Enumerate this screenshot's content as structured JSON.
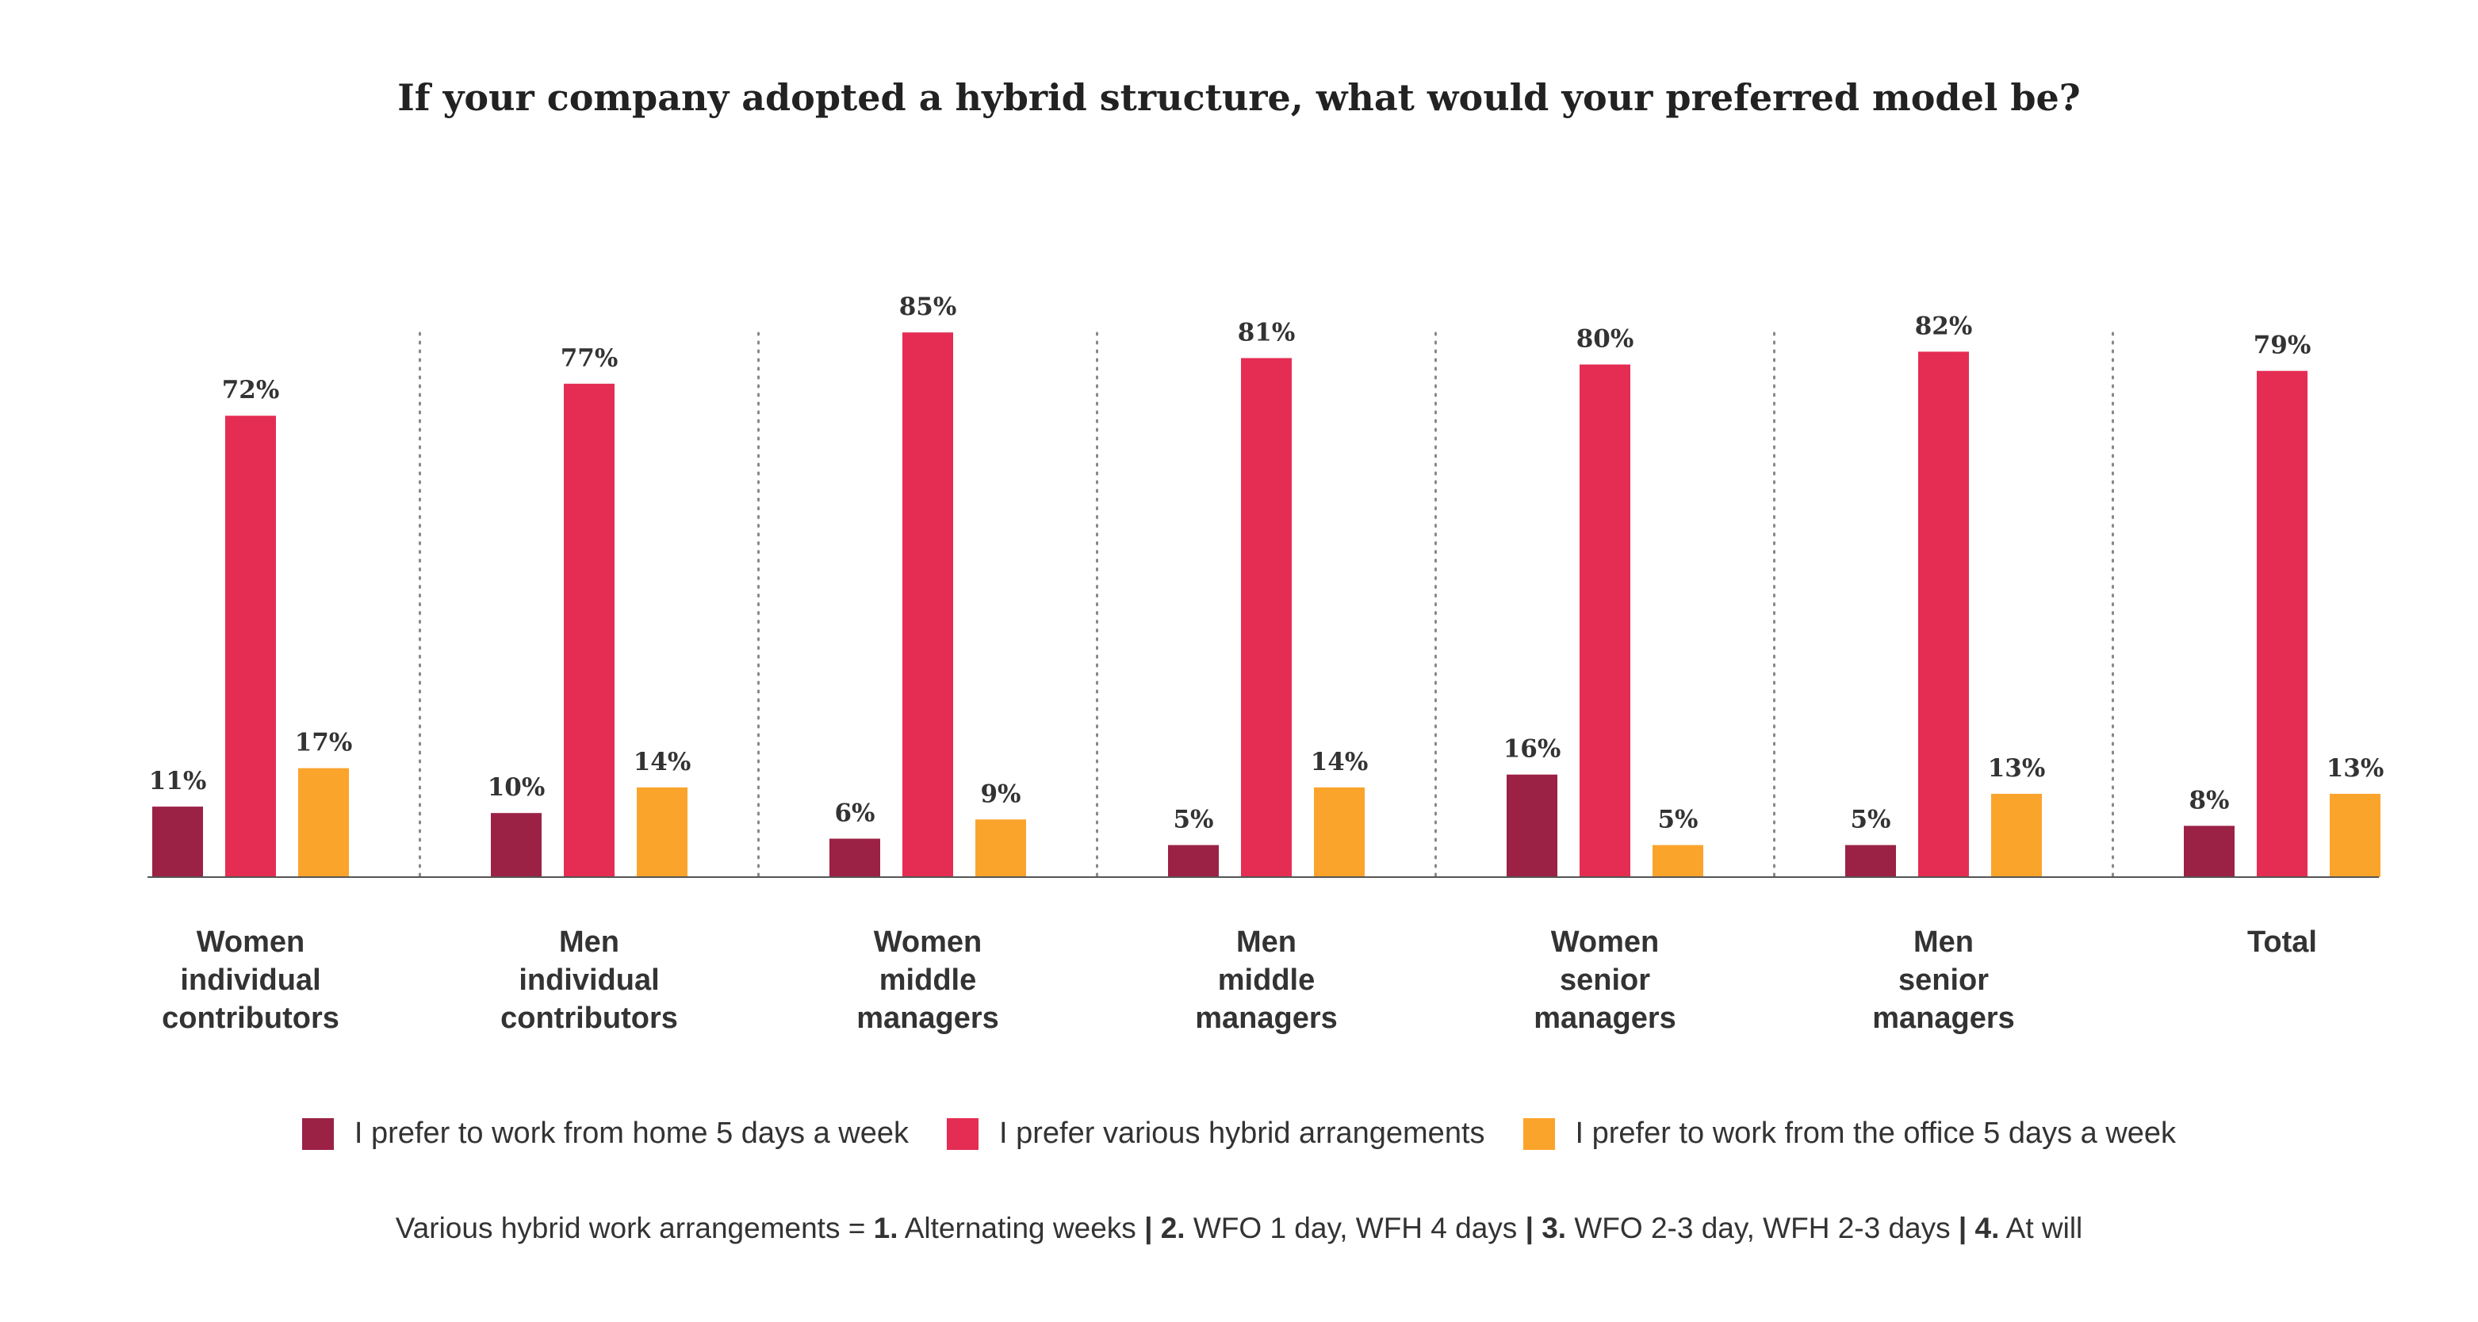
{
  "chart_data": {
    "type": "bar",
    "title": "If your company adopted a hybrid structure, what would your preferred model be?",
    "categories": [
      [
        "Women",
        "individual",
        "contributors"
      ],
      [
        "Men",
        "individual",
        "contributors"
      ],
      [
        "Women",
        "middle",
        "managers"
      ],
      [
        "Men",
        "middle",
        "managers"
      ],
      [
        "Women",
        "senior",
        "managers"
      ],
      [
        "Men",
        "senior",
        "managers"
      ],
      [
        "Total"
      ]
    ],
    "series": [
      {
        "name": "I prefer to work from home 5 days a week",
        "color": "#9B2145",
        "values": [
          11,
          10,
          6,
          5,
          16,
          5,
          8
        ]
      },
      {
        "name": "I prefer various hybrid arrangements",
        "color": "#E52D53",
        "values": [
          72,
          77,
          85,
          81,
          80,
          82,
          79
        ]
      },
      {
        "name": "I prefer to work from the office 5 days a week",
        "color": "#FBA42C",
        "values": [
          17,
          14,
          9,
          14,
          5,
          13,
          13
        ]
      }
    ],
    "value_suffix": "%",
    "ylim": [
      0,
      100
    ],
    "grid": false,
    "group_separators": "dotted",
    "legend_position": "bottom"
  },
  "footnote": {
    "prefix": "Various hybrid work arrangements = ",
    "items": [
      {
        "num": "1.",
        "text": " Alternating weeks"
      },
      {
        "num": "2.",
        "text": " WFO 1 day, WFH 4 days"
      },
      {
        "num": "3.",
        "text": " WFO 2-3 day, WFH 2-3 days"
      },
      {
        "num": "4.",
        "text": " At will"
      }
    ],
    "separator": " | "
  }
}
